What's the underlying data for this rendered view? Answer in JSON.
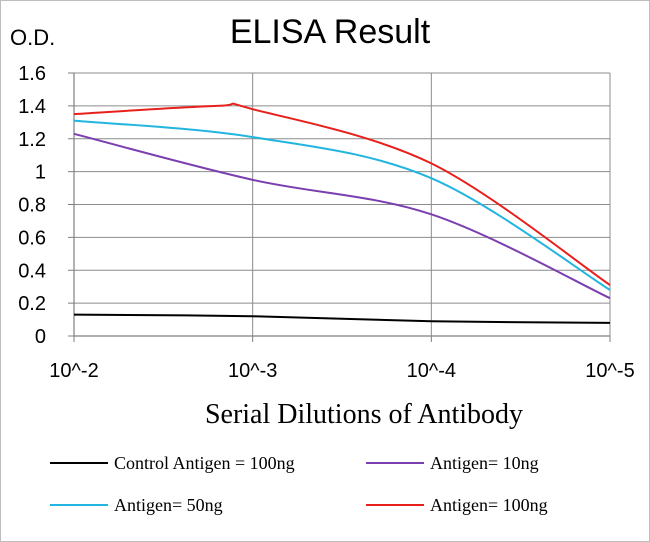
{
  "chart_data": {
    "type": "line",
    "title": "ELISA Result",
    "ylabel": "O.D.",
    "xlabel": "Serial Dilutions of Antibody",
    "categories": [
      "10^-2",
      "10^-3",
      "10^-4",
      "10^-5"
    ],
    "yticks": [
      "0",
      "0.2",
      "0.4",
      "0.6",
      "0.8",
      "1",
      "1.2",
      "1.4",
      "1.6"
    ],
    "ylim": [
      0,
      1.6
    ],
    "grid": true,
    "legend_position": "bottom",
    "series": [
      {
        "name": "Control Antigen = 100ng",
        "color": "#000000",
        "x": [
          0,
          1,
          2,
          3
        ],
        "values": [
          0.13,
          0.12,
          0.09,
          0.08
        ]
      },
      {
        "name": "Antigen= 10ng",
        "color": "#7b3fb0",
        "x": [
          0,
          1,
          2,
          3
        ],
        "values": [
          1.23,
          0.95,
          0.74,
          0.23
        ]
      },
      {
        "name": "Antigen= 50ng",
        "color": "#22b5e0",
        "x": [
          0,
          1,
          2,
          3
        ],
        "values": [
          1.31,
          1.21,
          0.96,
          0.28
        ]
      },
      {
        "name": "Antigen= 100ng",
        "color": "#e8201c",
        "x": [
          0,
          0.8,
          1,
          2,
          3
        ],
        "values": [
          1.35,
          1.4,
          1.38,
          1.05,
          0.31
        ]
      }
    ]
  }
}
